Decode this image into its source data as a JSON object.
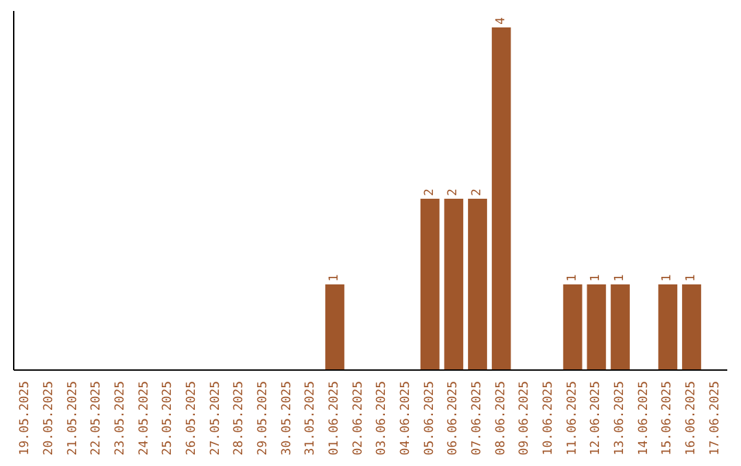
{
  "chart_data": {
    "type": "bar",
    "categories": [
      "19.05.2025",
      "20.05.2025",
      "21.05.2025",
      "22.05.2025",
      "23.05.2025",
      "24.05.2025",
      "25.05.2025",
      "26.05.2025",
      "27.05.2025",
      "28.05.2025",
      "29.05.2025",
      "30.05.2025",
      "31.05.2025",
      "01.06.2025",
      "02.06.2025",
      "03.06.2025",
      "04.06.2025",
      "05.06.2025",
      "06.06.2025",
      "07.06.2025",
      "08.06.2025",
      "09.06.2025",
      "10.06.2025",
      "11.06.2025",
      "12.06.2025",
      "13.06.2025",
      "14.06.2025",
      "15.06.2025",
      "16.06.2025",
      "17.06.2025"
    ],
    "values": [
      null,
      null,
      null,
      null,
      null,
      null,
      null,
      null,
      null,
      null,
      null,
      null,
      null,
      1,
      null,
      null,
      null,
      2,
      2,
      2,
      4,
      null,
      null,
      1,
      1,
      1,
      null,
      1,
      1,
      null
    ],
    "data_labels": true,
    "color": "#a0572b",
    "tick_labels": "x"
  }
}
